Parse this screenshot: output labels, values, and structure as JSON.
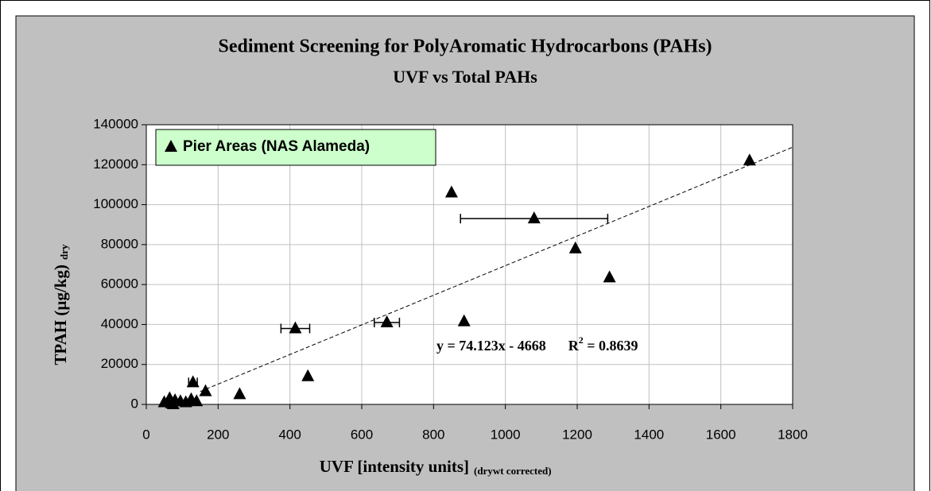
{
  "chart_data": {
    "type": "scatter",
    "title": "Sediment Screening for PolyAromatic Hydrocarbons (PAHs)",
    "subtitle": "UVF  vs Total PAHs",
    "x_label": "UVF [intensity units]",
    "x_label_note": "(drywt corrected)",
    "y_label": "TPAH  (µg/kg)",
    "y_label_note": "dry",
    "xlim": [
      0,
      1800
    ],
    "ylim": [
      0,
      140000
    ],
    "xticks": [
      0,
      200,
      400,
      600,
      800,
      1000,
      1200,
      1400,
      1600,
      1800
    ],
    "yticks": [
      0,
      20000,
      40000,
      60000,
      80000,
      100000,
      120000,
      140000
    ],
    "grid": true,
    "legend": "top-left",
    "series": [
      {
        "name": "Pier Areas (NAS Alameda)",
        "color": "#000000",
        "marker": "triangle",
        "x": [
          1680,
          850,
          1080,
          1195,
          1290,
          885,
          670,
          415,
          450,
          260,
          165,
          130,
          50,
          65,
          70,
          80,
          95,
          110,
          125,
          140,
          75
        ],
        "values": [
          122000,
          106000,
          93000,
          78000,
          63500,
          41500,
          41000,
          38000,
          14000,
          5000,
          6500,
          11000,
          1000,
          3000,
          500,
          2000,
          1500,
          1000,
          2500,
          1500,
          0
        ],
        "x_errors": [
          null,
          null,
          205,
          null,
          null,
          null,
          35,
          40,
          null,
          null,
          null,
          12,
          null,
          null,
          null,
          null,
          null,
          null,
          null,
          null,
          null
        ]
      }
    ],
    "trendline": {
      "slope": 74.123,
      "intercept": -4668,
      "x_start": 150,
      "x_end": 1800
    },
    "annotation": {
      "equation": "y = 74.123x - 4668",
      "r2_label": "R",
      "r2_power": "2",
      "r2_value": " = 0.8639"
    }
  }
}
